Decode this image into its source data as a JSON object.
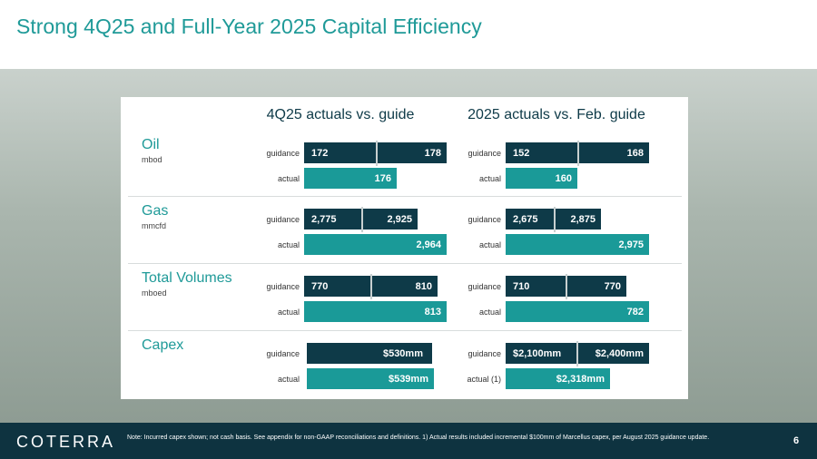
{
  "title": "Strong 4Q25 and Full-Year 2025 Capital Efficiency",
  "columns": [
    "4Q25 actuals vs. guide",
    "2025 actuals vs. Feb. guide"
  ],
  "rows": [
    {
      "label": "Oil",
      "unit": "mbod",
      "cells": [
        {
          "guidance_label": "guidance",
          "guidance": [
            "172",
            "178"
          ],
          "actual_label": "actual",
          "actual": "176"
        },
        {
          "guidance_label": "guidance",
          "guidance": [
            "152",
            "168"
          ],
          "actual_label": "actual",
          "actual": "160"
        }
      ]
    },
    {
      "label": "Gas",
      "unit": "mmcfd",
      "cells": [
        {
          "guidance_label": "guidance",
          "guidance": [
            "2,775",
            "2,925"
          ],
          "actual_label": "actual",
          "actual": "2,964"
        },
        {
          "guidance_label": "guidance",
          "guidance": [
            "2,675",
            "2,875"
          ],
          "actual_label": "actual",
          "actual": "2,975"
        }
      ]
    },
    {
      "label": "Total Volumes",
      "unit": "mboed",
      "cells": [
        {
          "guidance_label": "guidance",
          "guidance": [
            "770",
            "810"
          ],
          "actual_label": "actual",
          "actual": "813"
        },
        {
          "guidance_label": "guidance",
          "guidance": [
            "710",
            "770"
          ],
          "actual_label": "actual",
          "actual": "782"
        }
      ]
    },
    {
      "label": "Capex",
      "cells": [
        {
          "guidance_label": "guidance",
          "guidance": [
            "$530mm"
          ],
          "actual_label": "actual",
          "actual": "$539mm"
        },
        {
          "guidance_label": "guidance",
          "guidance": [
            "$2,100mm",
            "$2,400mm"
          ],
          "actual_label": "actual (1)",
          "actual": "$2,318mm"
        }
      ]
    }
  ],
  "footer": {
    "logo": "COTERRA",
    "note": "Note: Incurred capex shown; not cash basis. See appendix for non-GAAP reconciliations and definitions. 1) Actual results included incremental $100mm of Marcellus capex, per August 2025 guidance update.",
    "page": "6"
  }
}
